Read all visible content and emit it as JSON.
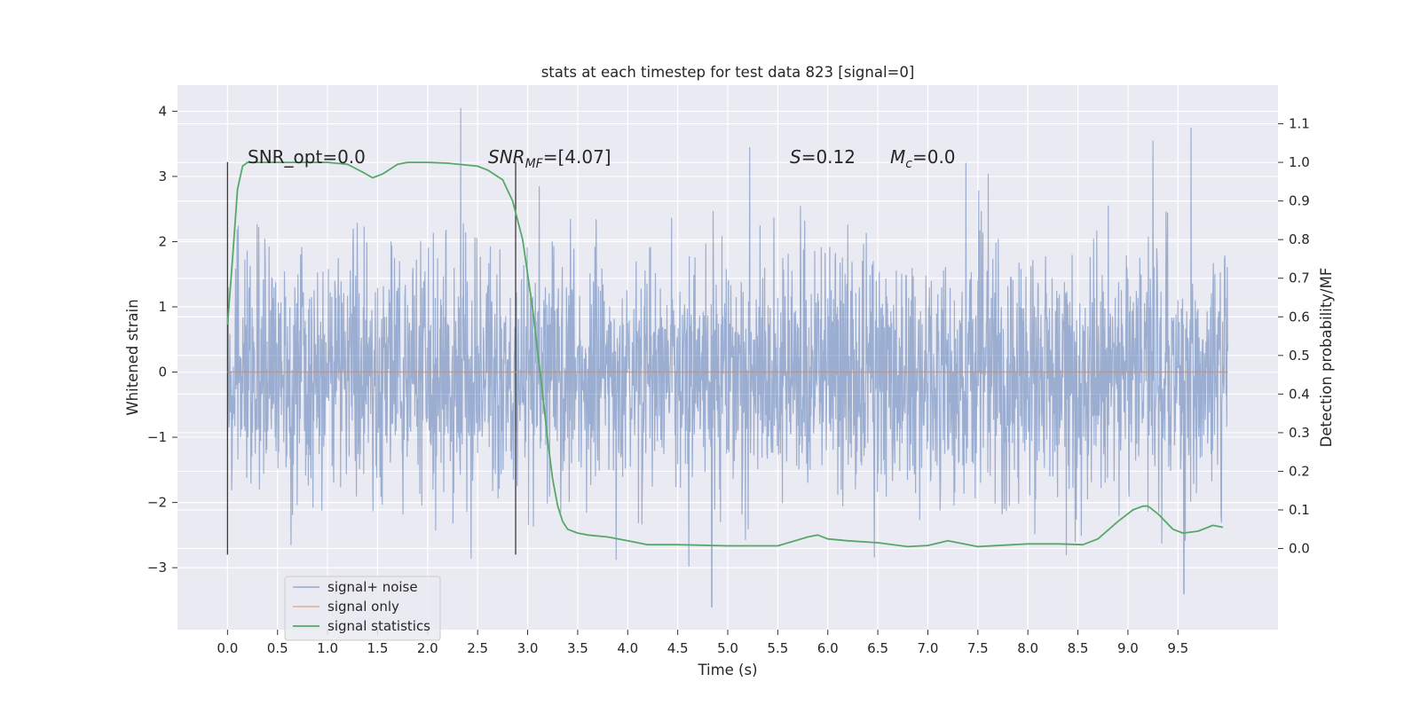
{
  "chart_data": {
    "type": "line",
    "title": "stats at each timestep for test data 823 [signal=0]",
    "xlabel": "Time (s)",
    "ylabel": "Whitened strain",
    "ylabel_right": "Detection probability/MF",
    "xlim": [
      -0.5,
      10.5
    ],
    "ylim": [
      -3.95,
      4.4
    ],
    "ylim_right": [
      -0.21,
      1.2
    ],
    "x_ticks": [
      "0.0",
      "0.5",
      "1.0",
      "1.5",
      "2.0",
      "2.5",
      "3.0",
      "3.5",
      "4.0",
      "4.5",
      "5.0",
      "5.5",
      "6.0",
      "6.5",
      "7.0",
      "7.5",
      "8.0",
      "8.5",
      "9.0",
      "9.5"
    ],
    "y_ticks": [
      "4",
      "3",
      "2",
      "1",
      "0",
      "−1",
      "−2",
      "−3"
    ],
    "y_right_ticks": [
      "1.1",
      "1.0",
      "0.9",
      "0.8",
      "0.7",
      "0.6",
      "0.5",
      "0.4",
      "0.3",
      "0.2",
      "0.1",
      "0.0"
    ],
    "annotations": {
      "snr_opt": "SNR_opt=0.0",
      "snr_mf_base": "SNR",
      "snr_mf_sub": "MF",
      "snr_mf_value": "=[4.07]",
      "s_symbol": "S",
      "s_value": "=0.12",
      "mc_symbol": "M",
      "mc_sub": "c",
      "mc_value": "=0.0"
    },
    "vertical_markers_x": [
      0.0,
      2.88
    ],
    "legend": {
      "placement": "lower-left",
      "entries": [
        "signal+ noise",
        "signal only",
        "signal statistics"
      ]
    },
    "series": [
      {
        "name": "signal+ noise",
        "axis": "left",
        "color": "#4c72b0",
        "x_range": [
          0.0,
          10.0
        ],
        "typical_band": [
          -1.6,
          1.4
        ],
        "peak_range": [
          -3.6,
          4.05
        ],
        "notable_peaks": [
          {
            "x": 2.33,
            "y": 4.05
          },
          {
            "x": 9.63,
            "y": 3.75
          },
          {
            "x": 9.25,
            "y": 3.55
          },
          {
            "x": 5.22,
            "y": 3.45
          },
          {
            "x": 4.84,
            "y": -3.6
          },
          {
            "x": 9.56,
            "y": -3.4
          }
        ]
      },
      {
        "name": "signal only",
        "axis": "left",
        "color": "#dd8452",
        "x": [
          0.0,
          10.0
        ],
        "y": [
          0.0,
          0.0
        ]
      },
      {
        "name": "signal statistics",
        "axis": "right",
        "color": "#55a868",
        "x": [
          0.0,
          0.05,
          0.1,
          0.15,
          0.2,
          0.3,
          0.5,
          0.8,
          1.0,
          1.2,
          1.35,
          1.45,
          1.55,
          1.7,
          1.8,
          2.0,
          2.2,
          2.5,
          2.6,
          2.75,
          2.85,
          2.95,
          3.05,
          3.15,
          3.2,
          3.25,
          3.3,
          3.35,
          3.4,
          3.5,
          3.6,
          3.8,
          4.0,
          4.2,
          4.5,
          5.0,
          5.5,
          5.8,
          5.9,
          6.0,
          6.2,
          6.5,
          6.8,
          7.0,
          7.2,
          7.5,
          8.0,
          8.3,
          8.55,
          8.7,
          8.9,
          9.05,
          9.15,
          9.2,
          9.3,
          9.45,
          9.55,
          9.7,
          9.85,
          9.95
        ],
        "y": [
          0.58,
          0.75,
          0.93,
          0.99,
          1.0,
          1.0,
          1.0,
          1.0,
          1.0,
          0.995,
          0.975,
          0.96,
          0.97,
          0.995,
          1.0,
          1.0,
          0.998,
          0.99,
          0.98,
          0.955,
          0.9,
          0.8,
          0.62,
          0.4,
          0.28,
          0.18,
          0.11,
          0.07,
          0.05,
          0.04,
          0.035,
          0.03,
          0.02,
          0.01,
          0.01,
          0.007,
          0.007,
          0.03,
          0.035,
          0.025,
          0.02,
          0.015,
          0.005,
          0.008,
          0.02,
          0.005,
          0.012,
          0.012,
          0.01,
          0.025,
          0.07,
          0.1,
          0.11,
          0.11,
          0.09,
          0.05,
          0.04,
          0.045,
          0.06,
          0.055
        ]
      }
    ]
  }
}
